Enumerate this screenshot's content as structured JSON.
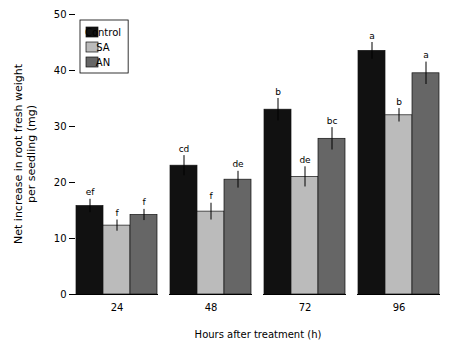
{
  "chart_data": {
    "type": "bar",
    "xlabel": "Hours after treatment (h)",
    "ylabel": "Net increase in root fresh weight\nper seedling (mg)",
    "categories": [
      "24",
      "48",
      "72",
      "96"
    ],
    "series": [
      {
        "name": "Control",
        "color": "#111111",
        "values": [
          15.8,
          23.0,
          33.0,
          43.5
        ],
        "errors": [
          1.2,
          1.8,
          2.0,
          1.5
        ],
        "letters": [
          "ef",
          "cd",
          "b",
          "a"
        ]
      },
      {
        "name": "SA",
        "color": "#bbbbbb",
        "values": [
          12.3,
          14.8,
          21.0,
          32.0
        ],
        "errors": [
          1.0,
          1.5,
          1.8,
          1.2
        ],
        "letters": [
          "f",
          "f",
          "de",
          "b"
        ]
      },
      {
        "name": "AN",
        "color": "#666666",
        "values": [
          14.2,
          20.5,
          27.8,
          39.5
        ],
        "errors": [
          1.0,
          1.5,
          2.0,
          2.0
        ],
        "letters": [
          "f",
          "de",
          "bc",
          "a"
        ]
      }
    ],
    "ylim": [
      0,
      50
    ],
    "yticks": [
      0,
      10,
      20,
      30,
      40,
      50
    ],
    "grid": false,
    "legend": "upper left"
  }
}
